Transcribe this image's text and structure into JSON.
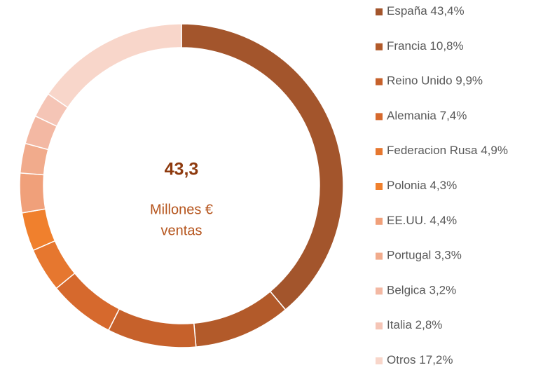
{
  "chart_data": {
    "type": "donut",
    "categories": [
      "España",
      "Francia",
      "Reino Unido",
      "Alemania",
      "Federacion Rusa",
      "Polonia",
      "EE.UU.",
      "Portugal",
      "Belgica",
      "Italia",
      "Otros"
    ],
    "values": [
      43.4,
      10.8,
      9.9,
      7.4,
      4.9,
      4.3,
      4.4,
      3.3,
      3.2,
      2.8,
      17.2
    ],
    "value_labels": [
      "43,4%",
      "10,8%",
      "9,9%",
      "7,4%",
      "4,9%",
      "4,3%",
      "4,4%",
      "3,3%",
      "3,2%",
      "2,8%",
      "17,2%"
    ],
    "colors": [
      "#a3552c",
      "#b25a2a",
      "#c6612b",
      "#d6692d",
      "#e6772f",
      "#f0802d",
      "#f0a07a",
      "#f1ab8c",
      "#f3b8a3",
      "#f5c5b6",
      "#f8d6ca"
    ],
    "center_value": "43,3",
    "center_label": [
      "Millones €",
      "ventas"
    ],
    "legend": "right"
  }
}
